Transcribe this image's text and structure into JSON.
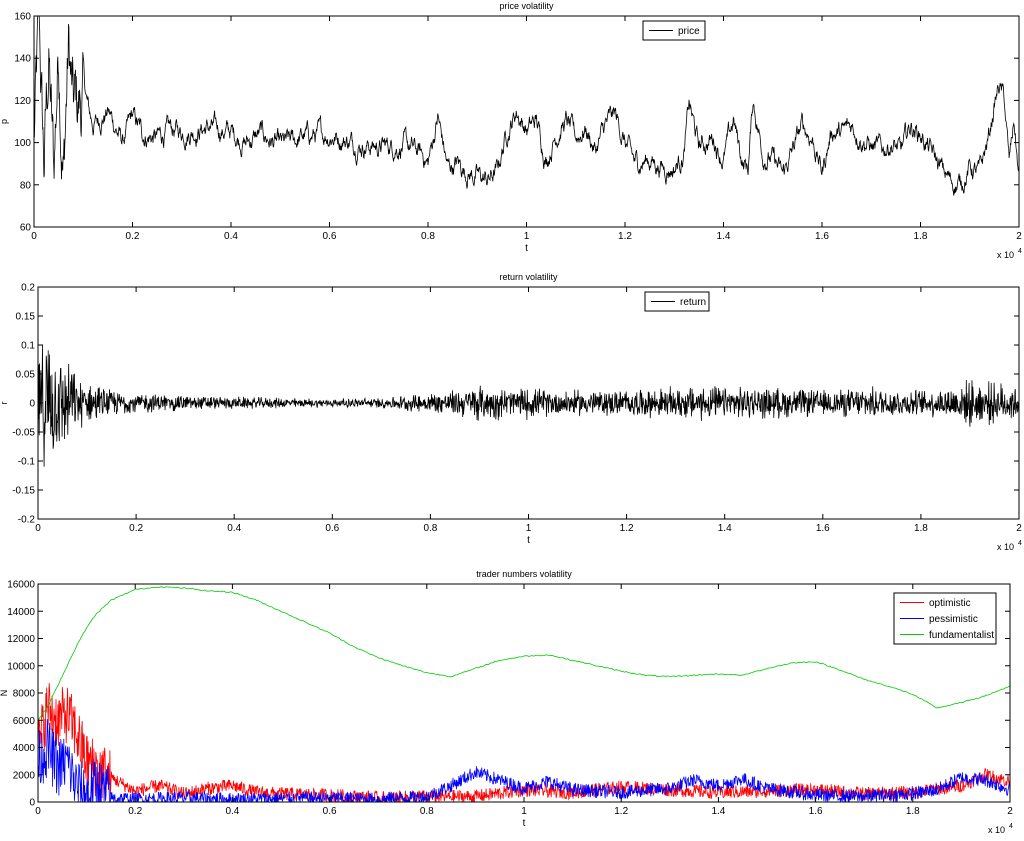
{
  "chart_data": [
    {
      "type": "line",
      "title": "price volatility",
      "xlabel": "t",
      "ylabel": "p",
      "x_multiplier": "x 10",
      "x_multiplier_exp": "4",
      "xlim": [
        0,
        2
      ],
      "ylim": [
        60,
        160
      ],
      "xticks": [
        "0",
        "0.2",
        "0.4",
        "0.6",
        "0.8",
        "1",
        "1.2",
        "1.4",
        "1.6",
        "1.8",
        "2"
      ],
      "yticks": [
        "60",
        "80",
        "100",
        "120",
        "140",
        "160"
      ],
      "legend": "top-center",
      "series": [
        {
          "name": "price",
          "color": "#000000",
          "x": [
            0,
            0.01,
            0.02,
            0.03,
            0.04,
            0.05,
            0.06,
            0.07,
            0.08,
            0.1,
            0.12,
            0.15,
            0.18,
            0.2,
            0.22,
            0.25,
            0.28,
            0.3,
            0.35,
            0.4,
            0.43,
            0.46,
            0.5,
            0.55,
            0.6,
            0.65,
            0.7,
            0.75,
            0.79,
            0.8,
            0.82,
            0.84,
            0.86,
            0.88,
            0.9,
            0.92,
            0.94,
            0.96,
            0.98,
            1.0,
            1.02,
            1.04,
            1.06,
            1.08,
            1.1,
            1.12,
            1.14,
            1.16,
            1.18,
            1.2,
            1.22,
            1.25,
            1.28,
            1.3,
            1.32,
            1.33,
            1.35,
            1.38,
            1.4,
            1.42,
            1.44,
            1.45,
            1.46,
            1.48,
            1.5,
            1.52,
            1.54,
            1.56,
            1.58,
            1.6,
            1.62,
            1.64,
            1.66,
            1.7,
            1.72,
            1.74,
            1.76,
            1.78,
            1.8,
            1.82,
            1.84,
            1.86,
            1.88,
            1.9,
            1.92,
            1.94,
            1.95,
            1.96,
            1.97,
            1.98,
            1.99,
            2.0
          ],
          "values": [
            100,
            150,
            85,
            140,
            82,
            150,
            90,
            145,
            110,
            120,
            108,
            115,
            100,
            112,
            104,
            102,
            106,
            105,
            107,
            105,
            100,
            104,
            98,
            103,
            104,
            100,
            98,
            99,
            94,
            90,
            112,
            88,
            90,
            86,
            84,
            82,
            86,
            105,
            115,
            106,
            110,
            92,
            104,
            110,
            102,
            107,
            96,
            108,
            113,
            100,
            90,
            92,
            88,
            88,
            95,
            118,
            98,
            102,
            92,
            110,
            90,
            88,
            120,
            95,
            92,
            84,
            96,
            108,
            102,
            86,
            106,
            104,
            108,
            98,
            96,
            100,
            95,
            108,
            104,
            96,
            88,
            82,
            80,
            88,
            85,
            104,
            118,
            127,
            120,
            90,
            110,
            82
          ]
        }
      ]
    },
    {
      "type": "line",
      "title": "return volatility",
      "xlabel": "t",
      "ylabel": "r",
      "x_multiplier": "x 10",
      "x_multiplier_exp": "4",
      "xlim": [
        0,
        2
      ],
      "ylim": [
        -0.2,
        0.2
      ],
      "xticks": [
        "0",
        "0.2",
        "0.4",
        "0.6",
        "0.8",
        "1",
        "1.2",
        "1.4",
        "1.6",
        "1.8",
        "2"
      ],
      "yticks": [
        "-0.2",
        "-0.15",
        "-0.1",
        "-0.05",
        "0",
        "0.05",
        "0.1",
        "0.15",
        "0.2"
      ],
      "legend": "top-center",
      "series": [
        {
          "name": "return",
          "color": "#000000",
          "x": [
            0,
            0.02,
            0.04,
            0.06,
            0.08,
            0.1,
            0.15,
            0.2,
            0.3,
            0.4,
            0.5,
            0.6,
            0.7,
            0.8,
            0.85,
            0.9,
            0.95,
            1.0,
            1.05,
            1.1,
            1.2,
            1.3,
            1.35,
            1.4,
            1.5,
            1.6,
            1.7,
            1.8,
            1.85,
            1.9,
            1.95,
            2.0
          ],
          "amplitude": [
            0.1,
            0.13,
            0.1,
            0.08,
            0.05,
            0.04,
            0.025,
            0.02,
            0.015,
            0.012,
            0.01,
            0.008,
            0.01,
            0.02,
            0.025,
            0.035,
            0.03,
            0.03,
            0.025,
            0.025,
            0.025,
            0.03,
            0.035,
            0.03,
            0.03,
            0.025,
            0.03,
            0.025,
            0.03,
            0.045,
            0.04,
            0.035
          ]
        }
      ]
    },
    {
      "type": "line",
      "title": "trader numbers volatility",
      "xlabel": "t",
      "ylabel": "N",
      "x_multiplier": "x 10",
      "x_multiplier_exp": "4",
      "xlim": [
        0,
        2
      ],
      "ylim": [
        0,
        16000
      ],
      "xticks": [
        "0",
        "0.2",
        "0.4",
        "0.6",
        "0.8",
        "1",
        "1.2",
        "1.4",
        "1.6",
        "1.8",
        "2"
      ],
      "yticks": [
        "0",
        "2000",
        "4000",
        "6000",
        "8000",
        "10000",
        "12000",
        "14000",
        "16000"
      ],
      "legend": "top-right",
      "series": [
        {
          "name": "optimistic",
          "color": "#ff0000",
          "x": [
            0,
            0.02,
            0.04,
            0.06,
            0.08,
            0.1,
            0.12,
            0.15,
            0.2,
            0.25,
            0.3,
            0.35,
            0.4,
            0.45,
            0.5,
            0.6,
            0.7,
            0.8,
            0.9,
            1.0,
            1.1,
            1.2,
            1.3,
            1.4,
            1.5,
            1.6,
            1.7,
            1.8,
            1.9,
            1.95,
            2.0
          ],
          "values": [
            4000,
            7000,
            6000,
            6500,
            5000,
            3000,
            2500,
            1800,
            800,
            1200,
            600,
            1000,
            1200,
            700,
            600,
            500,
            300,
            400,
            400,
            900,
            700,
            1100,
            900,
            700,
            800,
            900,
            600,
            700,
            1200,
            2000,
            1500
          ]
        },
        {
          "name": "pessimistic",
          "color": "#0000ff",
          "x": [
            0,
            0.02,
            0.04,
            0.06,
            0.08,
            0.1,
            0.12,
            0.15,
            0.2,
            0.3,
            0.4,
            0.5,
            0.6,
            0.7,
            0.8,
            0.85,
            0.9,
            0.95,
            1.0,
            1.05,
            1.1,
            1.2,
            1.3,
            1.35,
            1.4,
            1.45,
            1.5,
            1.6,
            1.7,
            1.8,
            1.85,
            1.9,
            1.95,
            2.0
          ],
          "values": [
            3000,
            4000,
            2500,
            3000,
            1000,
            600,
            1200,
            300,
            200,
            300,
            200,
            250,
            300,
            200,
            400,
            1200,
            2200,
            1600,
            1000,
            1500,
            900,
            700,
            1000,
            1600,
            1200,
            1700,
            1000,
            500,
            400,
            600,
            900,
            1800,
            1600,
            900
          ]
        },
        {
          "name": "fundamentalist",
          "color": "#00cc00",
          "x": [
            0,
            0.02,
            0.04,
            0.06,
            0.08,
            0.1,
            0.12,
            0.15,
            0.2,
            0.25,
            0.3,
            0.35,
            0.4,
            0.45,
            0.5,
            0.55,
            0.6,
            0.65,
            0.7,
            0.75,
            0.8,
            0.85,
            0.9,
            0.95,
            1.0,
            1.05,
            1.1,
            1.15,
            1.2,
            1.25,
            1.3,
            1.35,
            1.4,
            1.45,
            1.5,
            1.55,
            1.6,
            1.65,
            1.7,
            1.75,
            1.8,
            1.85,
            1.9,
            1.95,
            2.0
          ],
          "values": [
            6000,
            7000,
            8500,
            10000,
            11500,
            12800,
            13800,
            14800,
            15600,
            15800,
            15700,
            15500,
            15400,
            14800,
            14000,
            13200,
            12400,
            11400,
            10600,
            10000,
            9500,
            9200,
            9800,
            10400,
            10700,
            10800,
            10400,
            10000,
            9600,
            9300,
            9200,
            9300,
            9400,
            9300,
            9800,
            10200,
            10300,
            9700,
            9000,
            8500,
            7900,
            6900,
            7300,
            7800,
            8500
          ]
        }
      ]
    }
  ]
}
